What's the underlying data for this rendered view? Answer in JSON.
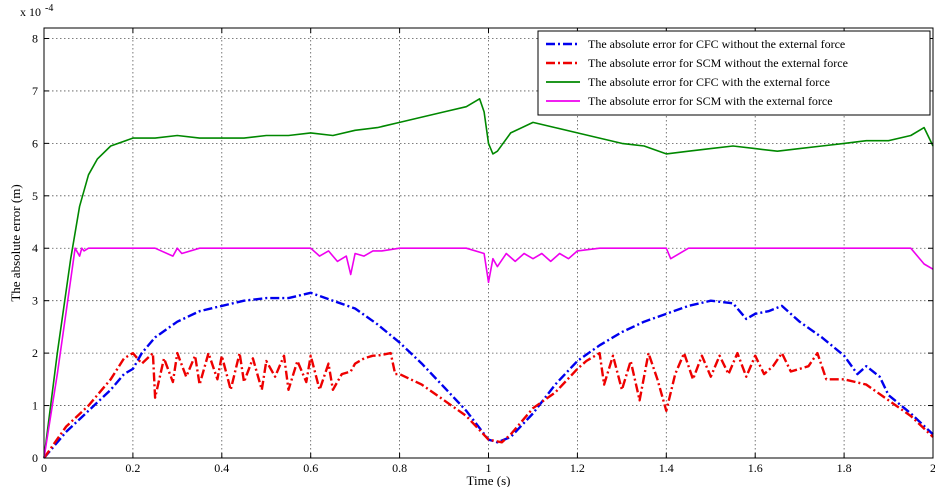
{
  "chart_data": {
    "type": "line",
    "title": "",
    "xlabel": "Time (s)",
    "ylabel": "The absolute error (m)",
    "y_multiplier_label": "x 10",
    "y_multiplier_exponent": "-4",
    "xlim": [
      0,
      2
    ],
    "ylim": [
      0,
      8.2
    ],
    "x_ticks": [
      0,
      0.2,
      0.4,
      0.6,
      0.8,
      1,
      1.2,
      1.4,
      1.6,
      1.8,
      2
    ],
    "x_tick_labels": [
      "0",
      "0.2",
      "0.4",
      "0.6",
      "0.8",
      "1",
      "1.2",
      "1.4",
      "1.6",
      "1.8",
      "2"
    ],
    "y_ticks": [
      0,
      1,
      2,
      3,
      4,
      5,
      6,
      7,
      8
    ],
    "y_tick_labels": [
      "0",
      "1",
      "2",
      "3",
      "4",
      "5",
      "6",
      "7",
      "8"
    ],
    "grid": true,
    "legend_position": "top-right",
    "series": [
      {
        "name": "The absolute error for CFC without  the external force",
        "color": "#0000ee",
        "style": "dashdot",
        "x": [
          0,
          0.05,
          0.1,
          0.15,
          0.18,
          0.2,
          0.22,
          0.25,
          0.3,
          0.35,
          0.4,
          0.45,
          0.5,
          0.55,
          0.6,
          0.65,
          0.7,
          0.75,
          0.8,
          0.85,
          0.9,
          0.95,
          1.0,
          1.02,
          1.05,
          1.1,
          1.15,
          1.2,
          1.25,
          1.3,
          1.35,
          1.4,
          1.45,
          1.5,
          1.55,
          1.58,
          1.6,
          1.63,
          1.66,
          1.7,
          1.75,
          1.8,
          1.83,
          1.85,
          1.88,
          1.9,
          1.95,
          2.0
        ],
        "y": [
          0,
          0.5,
          0.9,
          1.3,
          1.6,
          1.7,
          2.0,
          2.3,
          2.6,
          2.8,
          2.9,
          3.0,
          3.05,
          3.05,
          3.15,
          3.0,
          2.85,
          2.55,
          2.2,
          1.8,
          1.35,
          0.9,
          0.35,
          0.3,
          0.4,
          0.85,
          1.4,
          1.85,
          2.15,
          2.4,
          2.6,
          2.75,
          2.9,
          3.0,
          2.95,
          2.65,
          2.75,
          2.8,
          2.9,
          2.6,
          2.3,
          1.95,
          1.6,
          1.75,
          1.55,
          1.2,
          0.85,
          0.45
        ]
      },
      {
        "name": "The absolute error for SCM  without  the external force",
        "color": "#ee0000",
        "style": "dashdot",
        "x": [
          0,
          0.05,
          0.1,
          0.15,
          0.18,
          0.2,
          0.22,
          0.245,
          0.25,
          0.27,
          0.29,
          0.3,
          0.32,
          0.34,
          0.35,
          0.37,
          0.39,
          0.4,
          0.42,
          0.44,
          0.45,
          0.47,
          0.49,
          0.5,
          0.52,
          0.54,
          0.55,
          0.57,
          0.59,
          0.6,
          0.62,
          0.64,
          0.65,
          0.67,
          0.69,
          0.7,
          0.72,
          0.74,
          0.75,
          0.78,
          0.79,
          0.8,
          0.85,
          0.9,
          0.95,
          1.0,
          1.03,
          1.05,
          1.1,
          1.15,
          1.2,
          1.22,
          1.25,
          1.26,
          1.28,
          1.3,
          1.32,
          1.34,
          1.36,
          1.38,
          1.4,
          1.42,
          1.44,
          1.46,
          1.48,
          1.5,
          1.52,
          1.54,
          1.56,
          1.58,
          1.6,
          1.62,
          1.64,
          1.66,
          1.68,
          1.7,
          1.72,
          1.74,
          1.76,
          1.8,
          1.85,
          1.9,
          1.95,
          2.0
        ],
        "y": [
          0,
          0.6,
          1.0,
          1.5,
          1.9,
          2.0,
          1.8,
          2.0,
          1.15,
          1.9,
          1.45,
          2.0,
          1.55,
          1.95,
          1.4,
          2.0,
          1.5,
          1.95,
          1.3,
          2.0,
          1.45,
          1.9,
          1.3,
          1.85,
          1.55,
          1.95,
          1.3,
          1.85,
          1.45,
          1.95,
          1.3,
          1.8,
          1.3,
          1.6,
          1.65,
          1.8,
          1.9,
          1.95,
          1.95,
          2.0,
          1.6,
          1.6,
          1.4,
          1.1,
          0.8,
          0.35,
          0.3,
          0.45,
          0.95,
          1.25,
          1.7,
          1.85,
          2.0,
          1.4,
          1.95,
          1.3,
          1.85,
          1.1,
          2.0,
          1.5,
          0.9,
          1.6,
          2.0,
          1.5,
          1.95,
          1.55,
          1.95,
          1.6,
          2.0,
          1.55,
          1.95,
          1.6,
          1.75,
          2.0,
          1.65,
          1.7,
          1.75,
          2.0,
          1.5,
          1.5,
          1.4,
          1.1,
          0.8,
          0.4
        ]
      },
      {
        "name": "The absolute error for CFC with the external force",
        "color": "#008800",
        "style": "solid",
        "x": [
          0,
          0.03,
          0.06,
          0.08,
          0.1,
          0.12,
          0.15,
          0.2,
          0.25,
          0.3,
          0.35,
          0.4,
          0.45,
          0.5,
          0.55,
          0.6,
          0.65,
          0.7,
          0.75,
          0.8,
          0.85,
          0.9,
          0.95,
          0.98,
          0.99,
          1.0,
          1.01,
          1.02,
          1.05,
          1.1,
          1.15,
          1.2,
          1.25,
          1.3,
          1.35,
          1.4,
          1.45,
          1.5,
          1.55,
          1.6,
          1.65,
          1.7,
          1.75,
          1.8,
          1.85,
          1.9,
          1.95,
          1.98,
          2.0
        ],
        "y": [
          0,
          2.0,
          3.8,
          4.8,
          5.4,
          5.7,
          5.95,
          6.1,
          6.1,
          6.15,
          6.1,
          6.1,
          6.1,
          6.15,
          6.15,
          6.2,
          6.15,
          6.25,
          6.3,
          6.4,
          6.5,
          6.6,
          6.7,
          6.85,
          6.6,
          6.0,
          5.8,
          5.85,
          6.2,
          6.4,
          6.3,
          6.2,
          6.1,
          6.0,
          5.95,
          5.8,
          5.85,
          5.9,
          5.95,
          5.9,
          5.85,
          5.9,
          5.95,
          6.0,
          6.05,
          6.05,
          6.15,
          6.3,
          5.95
        ]
      },
      {
        "name": "The absolute error for SCM with the external force",
        "color": "#ee00ee",
        "style": "solid",
        "x": [
          0,
          0.03,
          0.06,
          0.07,
          0.08,
          0.085,
          0.09,
          0.1,
          0.15,
          0.2,
          0.25,
          0.29,
          0.3,
          0.31,
          0.35,
          0.4,
          0.45,
          0.5,
          0.55,
          0.6,
          0.62,
          0.64,
          0.66,
          0.68,
          0.69,
          0.7,
          0.72,
          0.74,
          0.76,
          0.8,
          0.85,
          0.9,
          0.95,
          0.99,
          1.0,
          1.01,
          1.02,
          1.04,
          1.06,
          1.08,
          1.1,
          1.12,
          1.14,
          1.16,
          1.18,
          1.2,
          1.25,
          1.3,
          1.35,
          1.4,
          1.41,
          1.45,
          1.5,
          1.55,
          1.6,
          1.65,
          1.7,
          1.75,
          1.8,
          1.85,
          1.9,
          1.95,
          1.98,
          2.0
        ],
        "y": [
          0,
          1.6,
          3.4,
          4.0,
          3.85,
          4.0,
          3.95,
          4.0,
          4.0,
          4.0,
          4.0,
          3.85,
          4.0,
          3.9,
          4.0,
          4.0,
          4.0,
          4.0,
          4.0,
          4.0,
          3.85,
          3.95,
          3.75,
          3.85,
          3.5,
          3.9,
          3.85,
          3.95,
          3.95,
          4.0,
          4.0,
          4.0,
          4.0,
          3.9,
          3.35,
          3.8,
          3.65,
          3.9,
          3.75,
          3.9,
          3.8,
          3.9,
          3.75,
          3.9,
          3.8,
          3.95,
          4.0,
          4.0,
          4.0,
          4.0,
          3.8,
          4.0,
          4.0,
          4.0,
          4.0,
          4.0,
          4.0,
          4.0,
          4.0,
          4.0,
          4.0,
          4.0,
          3.7,
          3.6
        ]
      }
    ]
  }
}
